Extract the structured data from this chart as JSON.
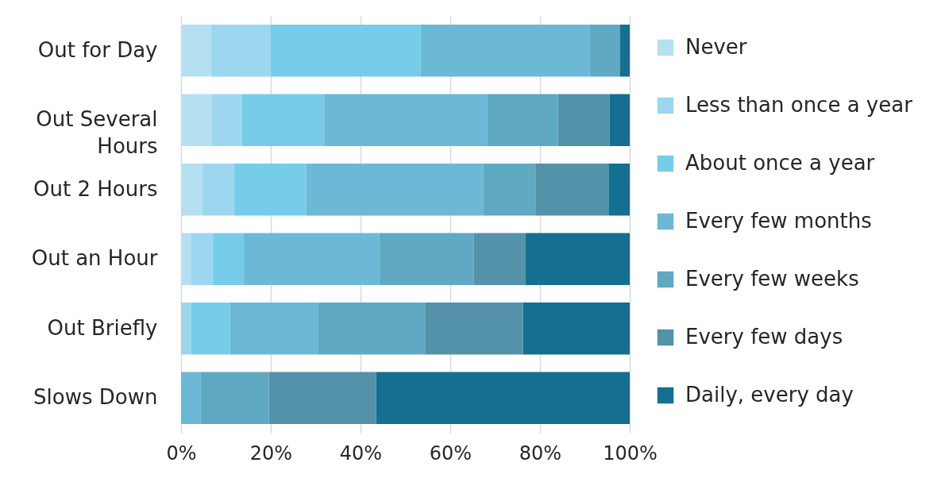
{
  "chart_data": {
    "type": "bar",
    "orientation": "horizontal",
    "stacked": true,
    "categories": [
      "Out for Day",
      "Out Several Hours",
      "Out 2 Hours",
      "Out an Hour",
      "Out Briefly",
      "Slows Down"
    ],
    "series": [
      {
        "name": "Never",
        "color": "#b5e0f1",
        "values": [
          6.7,
          6.9,
          4.8,
          2.3,
          0,
          0
        ]
      },
      {
        "name": "Less than once a year",
        "color": "#9dd7ef",
        "values": [
          13.3,
          6.7,
          7.0,
          4.8,
          2.3,
          0
        ]
      },
      {
        "name": "About once a year",
        "color": "#77cde9",
        "values": [
          33.4,
          18.3,
          16.1,
          6.9,
          8.6,
          0
        ]
      },
      {
        "name": "Every few months",
        "color": "#6bb9d6",
        "values": [
          37.7,
          36.3,
          39.5,
          30.2,
          19.7,
          4.4
        ]
      },
      {
        "name": "Every few weeks",
        "color": "#5fa9c3",
        "values": [
          6.7,
          15.8,
          11.7,
          21.0,
          23.9,
          15.2
        ]
      },
      {
        "name": "Every few days",
        "color": "#5392a8",
        "values": [
          0,
          11.5,
          16.3,
          11.6,
          21.7,
          23.9
        ]
      },
      {
        "name": "Daily, every day",
        "color": "#156f91",
        "values": [
          2.2,
          4.5,
          4.6,
          23.2,
          23.8,
          56.5
        ]
      }
    ],
    "xlim": [
      0,
      100
    ],
    "xticks": [
      {
        "value": 0,
        "label": "0%"
      },
      {
        "value": 20,
        "label": "20%"
      },
      {
        "value": 40,
        "label": "40%"
      },
      {
        "value": 60,
        "label": "60%"
      },
      {
        "value": 80,
        "label": "80%"
      },
      {
        "value": 100,
        "label": "100%"
      }
    ],
    "grid": "x",
    "legend": "right"
  }
}
